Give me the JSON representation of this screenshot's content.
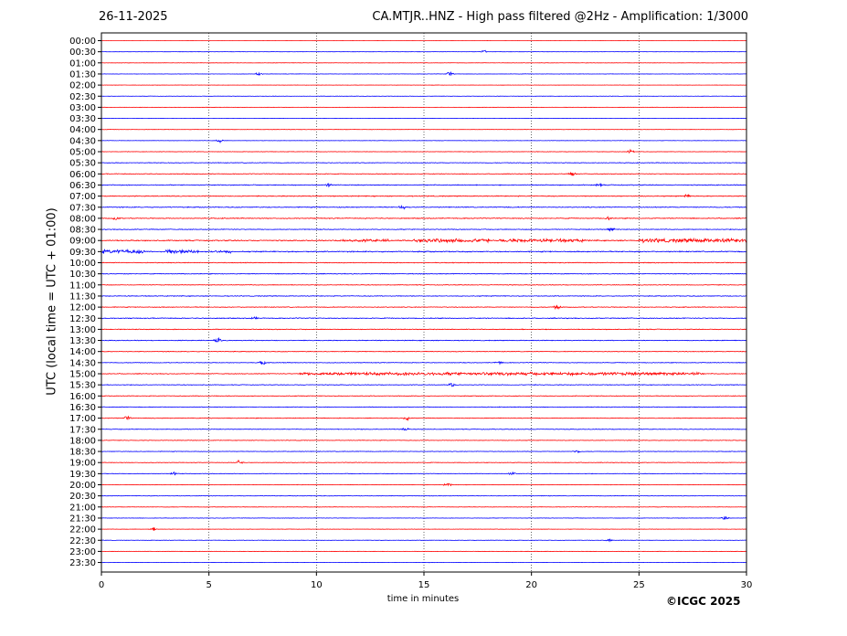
{
  "header": {
    "date": "26-11-2025",
    "title": "CA.MTJR..HNZ - High pass filtered @2Hz - Amplification: 1/3000"
  },
  "footer": {
    "copyright": "©ICGC 2025"
  },
  "colors": {
    "odd_trace": "#ff0000",
    "even_trace": "#0000ff",
    "frame": "#000000",
    "grid": "#000000"
  },
  "chart_data": {
    "type": "line",
    "xlabel": "time in minutes",
    "ylabel": "UTC (local time = UTC + 01:00)",
    "xlim": [
      0,
      30
    ],
    "x_ticks": [
      0,
      5,
      10,
      15,
      20,
      25,
      30
    ],
    "grid": "vertical dotted at 5 min steps",
    "row_labels": [
      "00:00",
      "00:30",
      "01:00",
      "01:30",
      "02:00",
      "02:30",
      "03:00",
      "03:30",
      "04:00",
      "04:30",
      "05:00",
      "05:30",
      "06:00",
      "06:30",
      "07:00",
      "07:30",
      "08:00",
      "08:30",
      "09:00",
      "09:30",
      "10:00",
      "10:30",
      "11:00",
      "11:30",
      "12:00",
      "12:30",
      "13:00",
      "13:30",
      "14:00",
      "14:30",
      "15:00",
      "15:30",
      "16:00",
      "16:30",
      "17:00",
      "17:30",
      "18:00",
      "18:30",
      "19:00",
      "19:30",
      "20:00",
      "20:30",
      "21:00",
      "21:30",
      "22:00",
      "22:30",
      "23:00",
      "23:30"
    ],
    "trace_color_pattern": [
      "red",
      "blue"
    ],
    "noise_level": [
      0.05,
      0.1,
      0.15,
      0.15,
      0.12,
      0.15,
      0.12,
      0.1,
      0.15,
      0.15,
      0.2,
      0.3,
      0.3,
      0.4,
      0.4,
      0.4,
      0.4,
      0.35,
      0.5,
      0.5,
      0.35,
      0.35,
      0.3,
      0.35,
      0.35,
      0.4,
      0.35,
      0.35,
      0.3,
      0.3,
      0.35,
      0.3,
      0.3,
      0.3,
      0.3,
      0.3,
      0.25,
      0.25,
      0.25,
      0.25,
      0.2,
      0.2,
      0.2,
      0.2,
      0.15,
      0.2,
      0.15,
      0.1
    ],
    "bursts": [
      {
        "row": 18,
        "from": 11,
        "to": 13.5,
        "amplitude": 1.2
      },
      {
        "row": 18,
        "from": 14.5,
        "to": 18,
        "amplitude": 1.8
      },
      {
        "row": 18,
        "from": 18.5,
        "to": 22.5,
        "amplitude": 1.5
      },
      {
        "row": 18,
        "from": 25,
        "to": 30,
        "amplitude": 1.8
      },
      {
        "row": 19,
        "from": 0,
        "to": 2,
        "amplitude": 1.8
      },
      {
        "row": 19,
        "from": 3,
        "to": 4.5,
        "amplitude": 1.8
      },
      {
        "row": 19,
        "from": 5,
        "to": 6,
        "amplitude": 1.3
      },
      {
        "row": 30,
        "from": 9.2,
        "to": 28,
        "amplitude": 1.4
      }
    ],
    "spikes": [
      {
        "row": 1,
        "x": 17.8,
        "amplitude": 1.8
      },
      {
        "row": 3,
        "x": 7.3,
        "amplitude": 2.0
      },
      {
        "row": 3,
        "x": 16.2,
        "amplitude": 2.2
      },
      {
        "row": 9,
        "x": 5.5,
        "amplitude": 2.2
      },
      {
        "row": 10,
        "x": 24.6,
        "amplitude": 2.0
      },
      {
        "row": 12,
        "x": 21.9,
        "amplitude": 2.5
      },
      {
        "row": 13,
        "x": 10.6,
        "amplitude": 2.2
      },
      {
        "row": 13,
        "x": 23.1,
        "amplitude": 2.5
      },
      {
        "row": 14,
        "x": 27.2,
        "amplitude": 2.2
      },
      {
        "row": 15,
        "x": 14.0,
        "amplitude": 2.5
      },
      {
        "row": 16,
        "x": 0.7,
        "amplitude": 2.5
      },
      {
        "row": 16,
        "x": 23.6,
        "amplitude": 2.0
      },
      {
        "row": 17,
        "x": 23.7,
        "amplitude": 2.5
      },
      {
        "row": 24,
        "x": 21.2,
        "amplitude": 2.5
      },
      {
        "row": 25,
        "x": 7.1,
        "amplitude": 2.0
      },
      {
        "row": 27,
        "x": 5.4,
        "amplitude": 2.8
      },
      {
        "row": 29,
        "x": 7.5,
        "amplitude": 2.5
      },
      {
        "row": 29,
        "x": 18.5,
        "amplitude": 2.2
      },
      {
        "row": 31,
        "x": 16.3,
        "amplitude": 2.0
      },
      {
        "row": 34,
        "x": 1.2,
        "amplitude": 2.2
      },
      {
        "row": 34,
        "x": 14.2,
        "amplitude": 2.2
      },
      {
        "row": 35,
        "x": 14.1,
        "amplitude": 2.2
      },
      {
        "row": 37,
        "x": 22.1,
        "amplitude": 2.0
      },
      {
        "row": 38,
        "x": 6.4,
        "amplitude": 2.2
      },
      {
        "row": 39,
        "x": 3.4,
        "amplitude": 2.5
      },
      {
        "row": 39,
        "x": 19.1,
        "amplitude": 2.0
      },
      {
        "row": 40,
        "x": 16.1,
        "amplitude": 2.0
      },
      {
        "row": 43,
        "x": 29.0,
        "amplitude": 2.5
      },
      {
        "row": 44,
        "x": 2.4,
        "amplitude": 2.0
      },
      {
        "row": 45,
        "x": 23.6,
        "amplitude": 1.8
      }
    ]
  }
}
